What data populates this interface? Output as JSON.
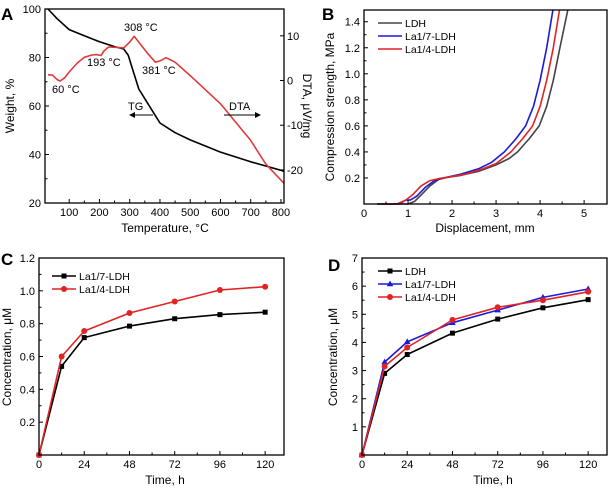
{
  "chart_data": [
    {
      "panel_label": "A",
      "type": "line",
      "xlabel": "Temperature, °C",
      "ylabel": "Weight, %",
      "y2label": "DTA, μV/mg",
      "xlim": [
        20,
        810
      ],
      "ylim": [
        20,
        100
      ],
      "y2lim": [
        -27.4,
        16
      ],
      "xticks": [
        100,
        200,
        300,
        400,
        500,
        600,
        700,
        800
      ],
      "yticks": [
        20,
        40,
        60,
        80,
        100
      ],
      "y2ticks": [
        -20,
        -10,
        0,
        10
      ],
      "grid": false,
      "series": [
        {
          "name": "TG",
          "axis": "left",
          "color": "#000000",
          "x": [
            30,
            60,
            100,
            150,
            200,
            250,
            280,
            295,
            310,
            330,
            350,
            380,
            400,
            450,
            500,
            600,
            700,
            800,
            810
          ],
          "y": [
            100,
            96,
            91.5,
            89,
            86.5,
            84.5,
            83.5,
            81,
            75,
            67,
            63,
            57,
            53,
            49,
            46,
            41,
            37,
            33.5,
            33
          ]
        },
        {
          "name": "DTA",
          "axis": "right",
          "color": "#e03a3a",
          "x": [
            30,
            45,
            60,
            70,
            85,
            100,
            125,
            150,
            175,
            190,
            205,
            215,
            230,
            260,
            280,
            300,
            315,
            330,
            360,
            385,
            400,
            420,
            450,
            500,
            600,
            700,
            750,
            810
          ],
          "y": [
            1.3,
            1.2,
            0.2,
            -0.1,
            0.6,
            1.9,
            3.8,
            5.2,
            5.7,
            5.8,
            5.6,
            6.6,
            7.5,
            7.4,
            7.3,
            8.6,
            9.9,
            8.6,
            6.0,
            4.1,
            4.4,
            5.1,
            4.1,
            1.1,
            -5.2,
            -13.4,
            -18.7,
            -23
          ]
        }
      ],
      "annotations": [
        "308 °C",
        "193 °C",
        "381 °C",
        "60 °C",
        "TG",
        "DTA"
      ]
    },
    {
      "panel_label": "B",
      "type": "line",
      "xlabel": "Displacement, mm",
      "ylabel": "Compression strength, MPa",
      "xlim": [
        0,
        5.52
      ],
      "ylim": [
        0,
        1.49
      ],
      "xticks": [
        0,
        1,
        2,
        3,
        4,
        5
      ],
      "yticks": [
        0.2,
        0.4,
        0.6,
        0.8,
        1.0,
        1.2,
        1.4
      ],
      "grid": false,
      "legend": "top-left",
      "series": [
        {
          "name": "LDH",
          "color": "#444444",
          "x": [
            0.3,
            1.0,
            1.15,
            1.3,
            1.5,
            1.7,
            1.9,
            2.2,
            2.6,
            3.0,
            3.3,
            3.49,
            3.75,
            3.98,
            4.15,
            4.3,
            4.45,
            4.63
          ],
          "y": [
            0,
            0,
            0.02,
            0.07,
            0.14,
            0.19,
            0.205,
            0.22,
            0.25,
            0.3,
            0.35,
            0.4,
            0.5,
            0.6,
            0.75,
            0.95,
            1.2,
            1.49
          ]
        },
        {
          "name": "La1/7-LDH",
          "color": "#1a1adc",
          "x": [
            0.3,
            0.8,
            0.95,
            1.05,
            1.2,
            1.4,
            1.6,
            1.8,
            2.2,
            2.6,
            2.9,
            3.19,
            3.45,
            3.67,
            3.85,
            4.0,
            4.15,
            4.29
          ],
          "y": [
            0,
            0,
            0.03,
            0.03,
            0.06,
            0.13,
            0.18,
            0.2,
            0.23,
            0.27,
            0.32,
            0.4,
            0.5,
            0.6,
            0.75,
            0.95,
            1.2,
            1.49
          ]
        },
        {
          "name": "La1/4-LDH",
          "color": "#e02424",
          "x": [
            0.3,
            0.75,
            0.95,
            1.1,
            1.3,
            1.5,
            1.7,
            1.9,
            2.3,
            2.7,
            3.0,
            3.34,
            3.6,
            3.83,
            4.0,
            4.15,
            4.3,
            4.44
          ],
          "y": [
            0,
            0,
            0.03,
            0.07,
            0.14,
            0.18,
            0.195,
            0.205,
            0.23,
            0.27,
            0.31,
            0.4,
            0.5,
            0.6,
            0.75,
            0.95,
            1.2,
            1.49
          ]
        }
      ]
    },
    {
      "panel_label": "C",
      "type": "line",
      "xlabel": "Time, h",
      "ylabel": "Concentration, μM",
      "xlim": [
        0,
        130
      ],
      "ylim": [
        0,
        1.2
      ],
      "xticks": [
        0,
        24,
        48,
        72,
        96,
        120
      ],
      "yticks": [
        0.2,
        0.4,
        0.6,
        0.8,
        1.0,
        1.2
      ],
      "grid": false,
      "legend": "top-left",
      "series": [
        {
          "name": "La1/7-LDH",
          "color": "#000000",
          "marker": "square",
          "x": [
            0,
            12,
            24,
            48,
            72,
            96,
            120
          ],
          "y": [
            0,
            0.54,
            0.715,
            0.785,
            0.83,
            0.855,
            0.87
          ]
        },
        {
          "name": "La1/4-LDH",
          "color": "#e02424",
          "marker": "circle",
          "x": [
            0,
            12,
            24,
            48,
            72,
            96,
            120
          ],
          "y": [
            0,
            0.6,
            0.755,
            0.865,
            0.935,
            1.005,
            1.025
          ]
        }
      ]
    },
    {
      "panel_label": "D",
      "type": "line",
      "xlabel": "Time, h",
      "ylabel": "Concentration, μM",
      "xlim": [
        0,
        130
      ],
      "ylim": [
        0,
        7
      ],
      "xticks": [
        0,
        24,
        48,
        72,
        96,
        120
      ],
      "yticks": [
        1,
        2,
        3,
        4,
        5,
        6,
        7
      ],
      "grid": false,
      "legend": "top-left",
      "series": [
        {
          "name": "LDH",
          "color": "#000000",
          "marker": "square",
          "x": [
            0,
            12,
            24,
            48,
            72,
            96,
            120
          ],
          "y": [
            0,
            2.9,
            3.57,
            4.33,
            4.83,
            5.23,
            5.52
          ]
        },
        {
          "name": "La1/7-LDH",
          "color": "#1a1adc",
          "marker": "triangle",
          "x": [
            0,
            12,
            24,
            48,
            72,
            96,
            120
          ],
          "y": [
            0,
            3.3,
            4.02,
            4.7,
            5.15,
            5.6,
            5.9
          ]
        },
        {
          "name": "La1/4-LDH",
          "color": "#e02424",
          "marker": "circle",
          "x": [
            0,
            12,
            24,
            48,
            72,
            96,
            120
          ],
          "y": [
            0,
            3.15,
            3.82,
            4.8,
            5.25,
            5.5,
            5.8
          ]
        }
      ]
    }
  ]
}
